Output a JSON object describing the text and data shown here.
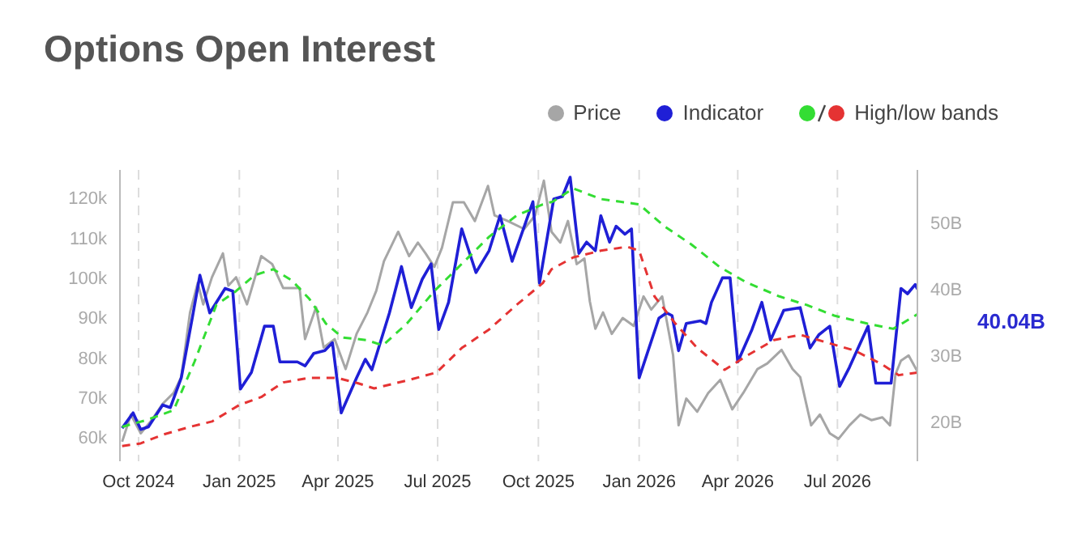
{
  "chart_data": {
    "type": "line",
    "title": "Options Open Interest",
    "legend": "top right",
    "grid": "x",
    "line_style": "solid",
    "marker": "none",
    "xlim": [
      "2024-09-14",
      "2026-09-12"
    ],
    "xticks": [
      {
        "value": "2024-10-01",
        "label": "Oct 2024"
      },
      {
        "value": "2025-01-01",
        "label": "Jan 2025"
      },
      {
        "value": "2025-04-01",
        "label": "Apr 2025"
      },
      {
        "value": "2025-07-01",
        "label": "Jul 2025"
      },
      {
        "value": "2025-10-01",
        "label": "Oct 2025"
      },
      {
        "value": "2026-01-01",
        "label": "Jan 2026"
      },
      {
        "value": "2026-04-01",
        "label": "Apr 2026"
      },
      {
        "value": "2026-07-01",
        "label": "Jul 2026"
      }
    ],
    "ylim": [
      54,
      127
    ],
    "yticks": [
      {
        "value": 60,
        "label": "60k"
      },
      {
        "value": 70,
        "label": "70k"
      },
      {
        "value": 80,
        "label": "80k"
      },
      {
        "value": 90,
        "label": "90k"
      },
      {
        "value": 100,
        "label": "100k"
      },
      {
        "value": 110,
        "label": "110k"
      },
      {
        "value": 120,
        "label": "120k"
      }
    ],
    "y2lim": [
      14,
      58
    ],
    "y2ticks": [
      {
        "value": 20,
        "label": "20B"
      },
      {
        "value": 30,
        "label": "30B"
      },
      {
        "value": 40,
        "label": "40B"
      },
      {
        "value": 50,
        "label": "50B"
      }
    ],
    "annotations": [
      "40.04B"
    ],
    "series": [
      {
        "name": "Price",
        "color": "#a6a6a6",
        "x": [
          "2024-09-16",
          "2024-09-24",
          "2024-10-03",
          "2024-10-13",
          "2024-10-23",
          "2024-11-02",
          "2024-11-09",
          "2024-11-17",
          "2024-11-24",
          "2024-11-29",
          "2024-12-07",
          "2024-12-17",
          "2024-12-22",
          "2024-12-29",
          "2025-01-08",
          "2025-01-21",
          "2025-01-31",
          "2025-02-10",
          "2025-02-25",
          "2025-03-02",
          "2025-03-12",
          "2025-03-19",
          "2025-03-29",
          "2025-04-08",
          "2025-04-18",
          "2025-04-28",
          "2025-05-06",
          "2025-05-13",
          "2025-05-26",
          "2025-06-05",
          "2025-06-13",
          "2025-06-20",
          "2025-06-28",
          "2025-07-05",
          "2025-07-15",
          "2025-07-25",
          "2025-08-04",
          "2025-08-16",
          "2025-08-22",
          "2025-09-03",
          "2025-09-18",
          "2025-09-28",
          "2025-10-06",
          "2025-10-13",
          "2025-10-21",
          "2025-10-28",
          "2025-11-05",
          "2025-11-12",
          "2025-11-17",
          "2025-11-22",
          "2025-11-29",
          "2025-12-07",
          "2025-12-17",
          "2025-12-27",
          "2026-01-05",
          "2026-01-12",
          "2026-01-22",
          "2026-02-01",
          "2026-02-06",
          "2026-02-13",
          "2026-02-23",
          "2026-03-05",
          "2026-03-16",
          "2026-03-27",
          "2026-04-06",
          "2026-04-19",
          "2026-04-28",
          "2026-05-11",
          "2026-05-21",
          "2026-05-28",
          "2026-06-07",
          "2026-06-15",
          "2026-06-24",
          "2026-07-02",
          "2026-07-12",
          "2026-07-22",
          "2026-08-01",
          "2026-08-11",
          "2026-08-18",
          "2026-08-23",
          "2026-08-28",
          "2026-09-04",
          "2026-09-12"
        ],
        "values": [
          58.9,
          65.7,
          61.0,
          64.3,
          68.4,
          71.1,
          75.1,
          91.3,
          98.7,
          93.3,
          100.1,
          106.1,
          98.0,
          100.1,
          93.3,
          105.4,
          103.4,
          97.4,
          97.4,
          84.6,
          92.6,
          82.5,
          84.6,
          77.1,
          85.9,
          91.3,
          96.7,
          104.1,
          111.5,
          105.4,
          108.8,
          106.1,
          102.7,
          107.5,
          118.9,
          118.9,
          114.2,
          123.0,
          115.6,
          114.2,
          112.2,
          115.6,
          124.3,
          111.5,
          108.8,
          114.2,
          103.4,
          104.8,
          94.0,
          87.2,
          91.3,
          85.9,
          89.9,
          87.9,
          95.3,
          92.0,
          95.3,
          80.5,
          63.0,
          69.7,
          66.4,
          71.1,
          74.4,
          67.0,
          71.1,
          77.1,
          78.5,
          81.9,
          77.1,
          75.1,
          63.0,
          65.7,
          61.0,
          59.6,
          63.0,
          65.7,
          64.3,
          65.0,
          63.0,
          75.8,
          79.2,
          80.5,
          76.5
        ]
      },
      {
        "name": "Indicator",
        "color": "#1f1fd6",
        "axis": "y2",
        "x": [
          "2024-09-16",
          "2024-09-26",
          "2024-10-03",
          "2024-10-10",
          "2024-10-23",
          "2024-10-30",
          "2024-11-09",
          "2024-11-19",
          "2024-11-26",
          "2024-12-05",
          "2024-12-19",
          "2024-12-26",
          "2025-01-02",
          "2025-01-12",
          "2025-01-24",
          "2025-02-01",
          "2025-02-07",
          "2025-02-23",
          "2025-03-02",
          "2025-03-10",
          "2025-03-20",
          "2025-03-27",
          "2025-04-04",
          "2025-04-18",
          "2025-04-26",
          "2025-05-02",
          "2025-05-18",
          "2025-05-29",
          "2025-06-07",
          "2025-06-17",
          "2025-06-25",
          "2025-07-02",
          "2025-07-11",
          "2025-07-23",
          "2025-08-05",
          "2025-08-17",
          "2025-08-27",
          "2025-09-07",
          "2025-09-26",
          "2025-10-02",
          "2025-10-15",
          "2025-10-23",
          "2025-10-30",
          "2025-11-07",
          "2025-11-14",
          "2025-11-22",
          "2025-11-27",
          "2025-12-05",
          "2025-12-11",
          "2025-12-19",
          "2025-12-25",
          "2026-01-01",
          "2026-01-19",
          "2026-01-26",
          "2026-01-31",
          "2026-02-06",
          "2026-02-13",
          "2026-02-26",
          "2026-03-03",
          "2026-03-08",
          "2026-03-18",
          "2026-03-25",
          "2026-04-01",
          "2026-04-14",
          "2026-04-23",
          "2026-05-01",
          "2026-05-13",
          "2026-05-28",
          "2026-06-06",
          "2026-06-14",
          "2026-06-24",
          "2026-07-03",
          "2026-07-12",
          "2026-07-21",
          "2026-07-29",
          "2026-08-05",
          "2026-08-19",
          "2026-08-28",
          "2026-09-03",
          "2026-09-10",
          "2026-09-12"
        ],
        "values": [
          19.0,
          21.3,
          18.8,
          19.2,
          22.5,
          22.1,
          26.6,
          35.6,
          42.1,
          36.4,
          40.1,
          39.7,
          24.9,
          27.4,
          34.4,
          34.4,
          29.0,
          29.0,
          28.4,
          30.3,
          30.7,
          31.9,
          21.3,
          26.6,
          29.4,
          27.8,
          36.4,
          43.4,
          37.2,
          41.5,
          43.8,
          33.9,
          38.0,
          49.1,
          42.5,
          45.8,
          51.1,
          44.2,
          53.2,
          40.9,
          53.6,
          54.0,
          56.9,
          45.4,
          47.1,
          45.8,
          51.1,
          47.1,
          49.5,
          48.3,
          49.1,
          26.6,
          35.6,
          36.4,
          36.0,
          30.7,
          34.8,
          35.2,
          34.8,
          38.0,
          41.7,
          41.7,
          29.0,
          33.9,
          38.0,
          32.3,
          36.8,
          37.2,
          31.1,
          33.1,
          34.4,
          25.3,
          28.2,
          31.5,
          34.4,
          25.8,
          25.8,
          40.1,
          39.3,
          40.7,
          40.0
        ]
      },
      {
        "color": "#33dd33",
        "axis": "y2",
        "line_style": "dashed",
        "x": [
          "2024-09-16",
          "2024-10-08",
          "2024-11-02",
          "2024-11-21",
          "2024-12-11",
          "2024-12-29",
          "2025-01-15",
          "2025-02-01",
          "2025-02-18",
          "2025-03-06",
          "2025-03-21",
          "2025-04-05",
          "2025-04-27",
          "2025-05-12",
          "2025-06-03",
          "2025-06-28",
          "2025-07-23",
          "2025-08-17",
          "2025-09-11",
          "2025-10-05",
          "2025-10-14",
          "2025-11-02",
          "2025-11-27",
          "2026-01-01",
          "2026-01-24",
          "2026-02-18",
          "2026-03-15",
          "2026-04-09",
          "2026-05-09",
          "2026-06-03",
          "2026-06-28",
          "2026-07-28",
          "2026-08-21",
          "2026-09-12"
        ],
        "values": [
          19.2,
          20.2,
          21.7,
          29.0,
          37.6,
          39.7,
          42.1,
          43.0,
          41.3,
          38.5,
          34.8,
          32.7,
          32.3,
          31.5,
          34.8,
          39.7,
          43.8,
          47.9,
          51.1,
          52.8,
          53.2,
          55.2,
          53.6,
          52.8,
          49.5,
          46.7,
          43.4,
          41.0,
          38.9,
          37.6,
          36.0,
          34.8,
          34.0,
          36.2
        ]
      },
      {
        "name": "High/low bands",
        "color": "#e53333",
        "axis": "y2",
        "line_style": "dashed",
        "x": [
          "2024-09-16",
          "2024-10-03",
          "2024-10-23",
          "2024-11-17",
          "2024-12-07",
          "2025-01-01",
          "2025-01-21",
          "2025-02-10",
          "2025-03-06",
          "2025-03-31",
          "2025-04-19",
          "2025-05-04",
          "2025-06-03",
          "2025-06-30",
          "2025-07-23",
          "2025-08-17",
          "2025-09-11",
          "2025-10-05",
          "2025-10-13",
          "2025-11-02",
          "2025-11-27",
          "2025-12-21",
          "2026-01-01",
          "2026-01-15",
          "2026-02-03",
          "2026-02-23",
          "2026-03-20",
          "2026-04-09",
          "2026-05-04",
          "2026-05-28",
          "2026-06-22",
          "2026-07-17",
          "2026-08-11",
          "2026-08-26",
          "2026-09-12"
        ],
        "values": [
          16.3,
          16.7,
          18.0,
          19.2,
          20.0,
          22.5,
          23.7,
          25.9,
          26.6,
          26.6,
          25.8,
          25.0,
          26.2,
          27.4,
          31.1,
          33.9,
          37.6,
          40.9,
          43.0,
          44.8,
          45.8,
          46.4,
          45.8,
          38.9,
          34.8,
          31.1,
          27.8,
          29.9,
          32.3,
          33.1,
          31.9,
          30.7,
          28.6,
          27.0,
          27.4
        ]
      }
    ]
  }
}
